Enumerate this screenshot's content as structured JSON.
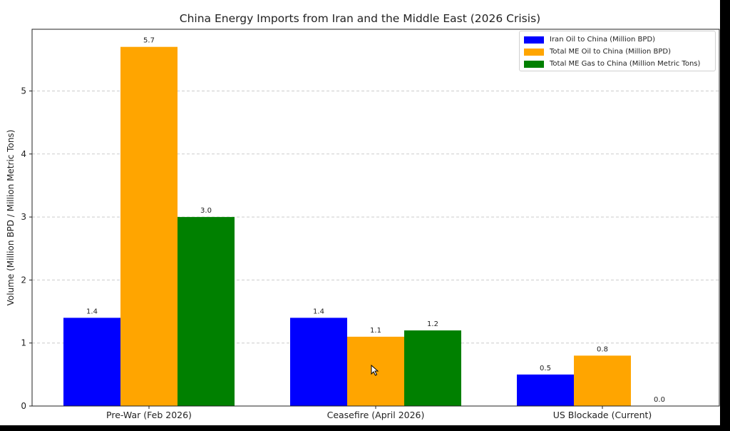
{
  "chart_data": {
    "type": "bar",
    "title": "China Energy Imports from Iran and the Middle East (2026 Crisis)",
    "xlabel": "",
    "ylabel": "Volume (Million BPD / Million Metric Tons)",
    "categories": [
      "Pre-War (Feb 2026)",
      "Ceasefire (April 2026)",
      "US Blockade (Current)"
    ],
    "series": [
      {
        "name": "Iran Oil to China (Million BPD)",
        "color": "#0000ff",
        "values": [
          1.4,
          1.4,
          0.5
        ],
        "labels": [
          "1.4",
          "1.4",
          "0.5"
        ]
      },
      {
        "name": "Total ME Oil to China (Million BPD)",
        "color": "#ffa500",
        "values": [
          5.7,
          1.1,
          0.8
        ],
        "labels": [
          "5.7",
          "1.1",
          "0.8"
        ]
      },
      {
        "name": "Total ME Gas to China (Million Metric Tons)",
        "color": "#008000",
        "values": [
          3.0,
          1.2,
          0.0
        ],
        "labels": [
          "3.0",
          "1.2",
          "0.0"
        ]
      }
    ],
    "ylim": [
      0,
      6
    ],
    "yticks": [
      0,
      1,
      2,
      3,
      4,
      5
    ],
    "ytick_labels": [
      "0",
      "1",
      "2",
      "3",
      "4",
      "5"
    ],
    "grid": true,
    "legend_position": "top-right"
  }
}
